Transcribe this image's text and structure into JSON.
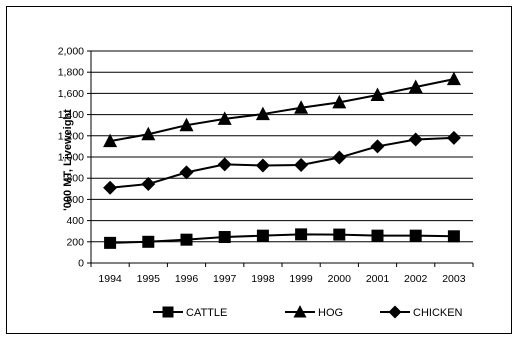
{
  "chart_data": {
    "type": "line",
    "title": "",
    "xlabel": "",
    "ylabel": "'000 MT, Liveweight",
    "categories": [
      "1994",
      "1995",
      "1996",
      "1997",
      "1998",
      "1999",
      "2000",
      "2001",
      "2002",
      "2003"
    ],
    "ylim": [
      0,
      2000
    ],
    "yticks": [
      0,
      200,
      400,
      600,
      800,
      1000,
      1200,
      1400,
      1600,
      1800,
      2000
    ],
    "ytick_labels": [
      "0",
      "200",
      "400",
      "600",
      "800",
      "1,000",
      "1,200",
      "1,400",
      "1,600",
      "1,800",
      "2,000"
    ],
    "grid": true,
    "legend_position": "bottom",
    "series": [
      {
        "name": "CATTLE",
        "marker": "square",
        "color": "#000000",
        "values": [
          190,
          200,
          220,
          245,
          258,
          270,
          268,
          258,
          258,
          252
        ]
      },
      {
        "name": "HOG",
        "marker": "triangle",
        "color": "#000000",
        "values": [
          1150,
          1215,
          1300,
          1360,
          1405,
          1465,
          1515,
          1585,
          1660,
          1735
        ]
      },
      {
        "name": "CHICKEN",
        "marker": "diamond",
        "color": "#000000",
        "values": [
          710,
          745,
          855,
          930,
          920,
          925,
          995,
          1100,
          1165,
          1180
        ]
      }
    ]
  }
}
